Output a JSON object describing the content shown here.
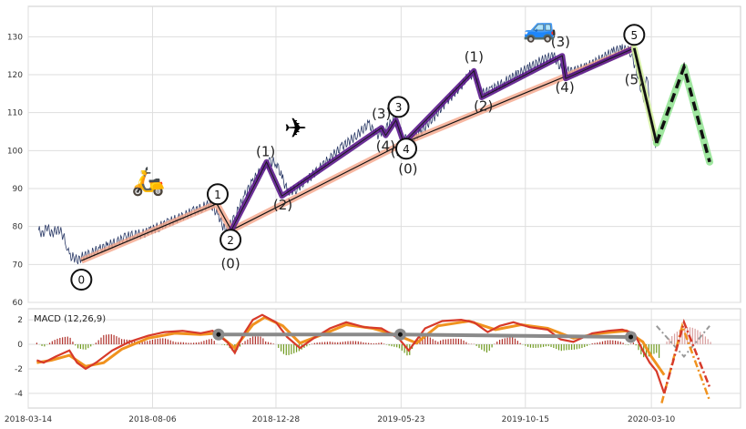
{
  "chart_data": [
    {
      "type": "line",
      "name": "price-panel",
      "ylim": [
        60,
        138
      ],
      "xlim": [
        "2018-03-14",
        "2020-06-22"
      ],
      "y_ticks": [
        60,
        70,
        80,
        90,
        100,
        110,
        120,
        130
      ],
      "grid": true,
      "series": [
        {
          "name": "",
          "color": "#2b3a67",
          "values": [
            [
              "2018-03-26",
              79
            ],
            [
              "2018-03-31",
              78
            ],
            [
              "2018-04-05",
              80
            ],
            [
              "2018-04-10",
              78
            ],
            [
              "2018-04-15",
              79
            ],
            [
              "2018-04-20",
              79
            ],
            [
              "2018-04-25",
              77
            ],
            [
              "2018-04-28",
              75
            ],
            [
              "2018-05-01",
              72
            ],
            [
              "2018-05-06",
              72
            ],
            [
              "2018-05-11",
              71
            ],
            [
              "2018-05-16",
              72
            ],
            [
              "2018-05-26",
              73
            ],
            [
              "2018-06-05",
              74
            ],
            [
              "2018-06-15",
              75
            ],
            [
              "2018-06-25",
              76
            ],
            [
              "2018-07-05",
              77
            ],
            [
              "2018-07-15",
              78
            ],
            [
              "2018-07-25",
              78
            ],
            [
              "2018-08-04",
              79
            ],
            [
              "2018-08-14",
              80
            ],
            [
              "2018-08-24",
              81
            ],
            [
              "2018-09-03",
              82
            ],
            [
              "2018-09-13",
              83
            ],
            [
              "2018-09-23",
              84
            ],
            [
              "2018-10-03",
              85
            ],
            [
              "2018-10-12",
              86
            ],
            [
              "2018-10-22",
              83
            ],
            [
              "2018-10-27",
              80
            ],
            [
              "2018-11-01",
              79
            ],
            [
              "2018-11-11",
              83
            ],
            [
              "2018-11-21",
              88
            ],
            [
              "2018-12-01",
              92
            ],
            [
              "2018-12-11",
              95
            ],
            [
              "2018-12-21",
              97
            ],
            [
              "2018-12-28",
              97
            ],
            [
              "2019-01-04",
              93
            ],
            [
              "2019-01-11",
              89
            ],
            [
              "2019-01-21",
              90
            ],
            [
              "2019-02-01",
              92
            ],
            [
              "2019-02-15",
              95
            ],
            [
              "2019-03-01",
              98
            ],
            [
              "2019-03-15",
              101
            ],
            [
              "2019-04-01",
              104
            ],
            [
              "2019-04-15",
              107
            ],
            [
              "2019-04-25",
              104
            ],
            [
              "2019-05-05",
              106
            ],
            [
              "2019-05-15",
              108
            ],
            [
              "2019-05-26",
              104
            ],
            [
              "2019-06-01",
              102
            ],
            [
              "2019-06-15",
              105
            ],
            [
              "2019-07-01",
              109
            ],
            [
              "2019-07-15",
              113
            ],
            [
              "2019-08-01",
              117
            ],
            [
              "2019-08-10",
              120
            ],
            [
              "2019-08-17",
              120
            ],
            [
              "2019-08-25",
              115
            ],
            [
              "2019-09-05",
              116
            ],
            [
              "2019-09-20",
              118
            ],
            [
              "2019-10-05",
              120
            ],
            [
              "2019-10-20",
              122
            ],
            [
              "2019-11-05",
              124
            ],
            [
              "2019-11-17",
              125
            ],
            [
              "2019-11-27",
              121
            ],
            [
              "2019-12-10",
              121
            ],
            [
              "2019-12-25",
              122
            ],
            [
              "2020-01-10",
              124
            ],
            [
              "2020-01-25",
              126
            ],
            [
              "2020-02-05",
              127
            ],
            [
              "2020-02-15",
              126
            ],
            [
              "2020-02-24",
              119
            ],
            [
              "2020-03-01",
              113
            ],
            [
              "2020-03-05",
              120
            ],
            [
              "2020-03-10",
              105
            ],
            [
              "2020-03-16",
              101
            ]
          ]
        }
      ],
      "trend_lines": [
        {
          "color": "#f4a58a",
          "points": [
            [
              "2018-05-15",
              71
            ],
            [
              "2018-10-20",
              86
            ],
            [
              "2018-11-06",
              79
            ],
            [
              "2019-05-26",
              102
            ],
            [
              "2020-02-19",
              127
            ]
          ]
        },
        {
          "color": "#111111",
          "points": [
            [
              "2018-05-15",
              71
            ],
            [
              "2018-10-20",
              86
            ],
            [
              "2018-11-06",
              79
            ],
            [
              "2019-05-26",
              102
            ],
            [
              "2020-02-19",
              127
            ]
          ]
        },
        {
          "color": "#5b1a8c",
          "points": [
            [
              "2018-11-06",
              79
            ],
            [
              "2018-12-17",
              97
            ],
            [
              "2019-01-04",
              88
            ],
            [
              "2019-04-30",
              106
            ],
            [
              "2019-05-05",
              104
            ],
            [
              "2019-05-17",
              108
            ],
            [
              "2019-05-26",
              102
            ],
            [
              "2019-08-16",
              121
            ],
            [
              "2019-08-25",
              114
            ],
            [
              "2019-11-27",
              125
            ],
            [
              "2019-12-01",
              119
            ],
            [
              "2020-02-19",
              127
            ]
          ]
        },
        {
          "color": "#111111",
          "points": [
            [
              "2020-02-19",
              127
            ],
            [
              "2020-03-16",
              102
            ],
            [
              "2020-04-17",
              122
            ],
            [
              "2020-05-17",
              97
            ]
          ],
          "dash_after": 1
        },
        {
          "color": "#8fe38f",
          "points": [
            [
              "2020-03-16",
              102
            ],
            [
              "2020-04-17",
              122
            ],
            [
              "2020-05-17",
              97
            ]
          ]
        },
        {
          "color": "#d4f0a0",
          "points": [
            [
              "2020-02-19",
              127
            ],
            [
              "2020-03-16",
              102
            ]
          ]
        }
      ],
      "circle_labels": [
        {
          "text": "0",
          "date": "2018-05-15",
          "y": 66
        },
        {
          "text": "1",
          "date": "2018-10-21",
          "y": 88.5
        },
        {
          "text": "2",
          "date": "2018-11-05",
          "y": 76.5
        },
        {
          "text": "3",
          "date": "2019-05-20",
          "y": 111.5
        },
        {
          "text": "4",
          "date": "2019-05-29",
          "y": 100.5
        },
        {
          "text": "5",
          "date": "2020-02-19",
          "y": 130.5
        }
      ],
      "text_labels": [
        {
          "text": "(0)",
          "date": "2018-11-05",
          "y": 69
        },
        {
          "text": "(1)",
          "date": "2018-12-16",
          "y": 98.5
        },
        {
          "text": "(2)",
          "date": "2019-01-05",
          "y": 84.5
        },
        {
          "text": "(3)",
          "date": "2019-04-30",
          "y": 108.5
        },
        {
          "text": "(4)",
          "date": "2019-05-05",
          "y": 100
        },
        {
          "text": "(5)",
          "date": "2019-05-22",
          "y": 98.5
        },
        {
          "text": "(0)",
          "date": "2019-05-31",
          "y": 94
        },
        {
          "text": "(1)",
          "date": "2019-08-16",
          "y": 123.5
        },
        {
          "text": "(2)",
          "date": "2019-08-27",
          "y": 110.5
        },
        {
          "text": "(3)",
          "date": "2019-11-25",
          "y": 127.5
        },
        {
          "text": "(4)",
          "date": "2019-11-30",
          "y": 115.5
        },
        {
          "text": "(5)",
          "date": "2020-02-19",
          "y": 117.5
        }
      ],
      "emoji_labels": [
        {
          "icon": "scooter-icon",
          "glyph": "🛵",
          "date": "2018-08-01",
          "y": 89.5
        },
        {
          "icon": "airplane-icon",
          "glyph": "✈",
          "date": "2019-01-20",
          "y": 103.5
        },
        {
          "icon": "car-icon",
          "glyph": "🚙",
          "date": "2019-11-01",
          "y": 130
        }
      ]
    },
    {
      "type": "line",
      "name": "macd-panel",
      "label": "MACD (12,26,9)",
      "ylim": [
        -5.2,
        2.9
      ],
      "y_ticks": [
        -4,
        -2,
        0,
        2
      ],
      "x_ticks": [
        "2018-03-14",
        "2018-08-06",
        "2018-12-28",
        "2019-05-23",
        "2019-10-15",
        "2020-03-10"
      ],
      "grid": true,
      "series": [
        {
          "name": "",
          "color": "#d73a2a",
          "values": [
            [
              "2018-03-24",
              -1.3
            ],
            [
              "2018-04-01",
              -1.5
            ],
            [
              "2018-04-15",
              -1
            ],
            [
              "2018-05-01",
              -0.5
            ],
            [
              "2018-05-10",
              -1.5
            ],
            [
              "2018-05-20",
              -2
            ],
            [
              "2018-06-01",
              -1.5
            ],
            [
              "2018-06-20",
              -0.5
            ],
            [
              "2018-07-10",
              0.2
            ],
            [
              "2018-08-01",
              0.7
            ],
            [
              "2018-08-20",
              1
            ],
            [
              "2018-09-10",
              1.1
            ],
            [
              "2018-10-01",
              0.9
            ],
            [
              "2018-10-15",
              1.1
            ],
            [
              "2018-11-01",
              0.2
            ],
            [
              "2018-11-10",
              -0.7
            ],
            [
              "2018-11-20",
              0.8
            ],
            [
              "2018-12-01",
              2
            ],
            [
              "2018-12-12",
              2.4
            ],
            [
              "2018-12-28",
              1.8
            ],
            [
              "2019-01-10",
              0.6
            ],
            [
              "2019-01-25",
              -0.3
            ],
            [
              "2019-02-10",
              0.5
            ],
            [
              "2019-03-01",
              1.3
            ],
            [
              "2019-03-20",
              1.8
            ],
            [
              "2019-04-10",
              1.4
            ],
            [
              "2019-04-30",
              1.3
            ],
            [
              "2019-05-20",
              0.5
            ],
            [
              "2019-06-01",
              -0.5
            ],
            [
              "2019-06-20",
              1.3
            ],
            [
              "2019-07-10",
              1.9
            ],
            [
              "2019-08-01",
              2
            ],
            [
              "2019-08-16",
              1.8
            ],
            [
              "2019-09-01",
              1
            ],
            [
              "2019-09-15",
              1.5
            ],
            [
              "2019-10-01",
              1.8
            ],
            [
              "2019-10-20",
              1.4
            ],
            [
              "2019-11-10",
              1.2
            ],
            [
              "2019-11-25",
              0.4
            ],
            [
              "2019-12-10",
              0.2
            ],
            [
              "2020-01-01",
              0.9
            ],
            [
              "2020-01-20",
              1.1
            ],
            [
              "2020-02-05",
              1.2
            ],
            [
              "2020-02-19",
              0.9
            ],
            [
              "2020-02-29",
              -0.5
            ],
            [
              "2020-03-08",
              -1.5
            ],
            [
              "2020-03-16",
              -2.2
            ],
            [
              "2020-03-25",
              -4
            ]
          ]
        },
        {
          "name": "",
          "color": "#f0921e",
          "values": [
            [
              "2018-03-24",
              -1.5
            ],
            [
              "2018-04-10",
              -1.3
            ],
            [
              "2018-05-01",
              -0.9
            ],
            [
              "2018-05-20",
              -1.8
            ],
            [
              "2018-06-10",
              -1.5
            ],
            [
              "2018-07-01",
              -0.4
            ],
            [
              "2018-08-01",
              0.5
            ],
            [
              "2018-09-01",
              0.9
            ],
            [
              "2018-10-01",
              0.8
            ],
            [
              "2018-10-20",
              0.9
            ],
            [
              "2018-11-10",
              -0.3
            ],
            [
              "2018-12-01",
              1.6
            ],
            [
              "2018-12-15",
              2.2
            ],
            [
              "2019-01-05",
              1.5
            ],
            [
              "2019-01-25",
              0.1
            ],
            [
              "2019-02-20",
              0.8
            ],
            [
              "2019-03-20",
              1.6
            ],
            [
              "2019-04-20",
              1.3
            ],
            [
              "2019-05-20",
              0.7
            ],
            [
              "2019-06-10",
              0.1
            ],
            [
              "2019-07-05",
              1.5
            ],
            [
              "2019-08-10",
              1.9
            ],
            [
              "2019-09-10",
              1.2
            ],
            [
              "2019-10-10",
              1.6
            ],
            [
              "2019-11-10",
              1.3
            ],
            [
              "2019-12-10",
              0.5
            ],
            [
              "2020-01-10",
              0.9
            ],
            [
              "2020-02-10",
              1.1
            ],
            [
              "2020-02-29",
              0.2
            ],
            [
              "2020-03-10",
              -1
            ],
            [
              "2020-03-25",
              -2.5
            ]
          ]
        }
      ],
      "projections": [
        {
          "color": "#d73a2a",
          "points": [
            [
              "2020-03-25",
              -4
            ],
            [
              "2020-04-17",
              1.8
            ],
            [
              "2020-05-17",
              -3.5
            ]
          ]
        },
        {
          "color": "#f0921e",
          "points": [
            [
              "2020-03-22",
              -4.8
            ],
            [
              "2020-04-15",
              1.5
            ],
            [
              "2020-05-17",
              -4.6
            ]
          ]
        },
        {
          "color": "#999999",
          "points": [
            [
              "2020-03-16",
              1.5
            ],
            [
              "2020-04-17",
              -1
            ],
            [
              "2020-05-17",
              1.5
            ]
          ]
        }
      ],
      "signal_markers": [
        {
          "date": "2018-10-22",
          "y": 0.8
        },
        {
          "date": "2019-05-22",
          "y": 0.8
        },
        {
          "date": "2020-02-15",
          "y": 0.6
        }
      ],
      "histogram_color_pos": "#b0302a",
      "histogram_color_neg": "#6f9a1f"
    }
  ]
}
